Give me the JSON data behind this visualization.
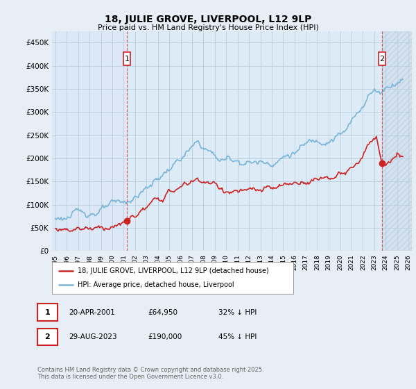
{
  "title": "18, JULIE GROVE, LIVERPOOL, L12 9LP",
  "subtitle": "Price paid vs. HM Land Registry's House Price Index (HPI)",
  "ylabel_values": [
    0,
    50000,
    100000,
    150000,
    200000,
    250000,
    300000,
    350000,
    400000,
    450000
  ],
  "ylabel_labels": [
    "£0",
    "£50K",
    "£100K",
    "£150K",
    "£200K",
    "£250K",
    "£300K",
    "£350K",
    "£400K",
    "£450K"
  ],
  "xlim_start": 1994.7,
  "xlim_end": 2026.3,
  "ylim": [
    0,
    475000
  ],
  "hpi_color": "#7ab4d8",
  "price_color": "#cc2222",
  "vline_color": "#dd4444",
  "marker1_year": 2001.3,
  "marker2_year": 2023.66,
  "marker1_price": 64950,
  "marker2_price": 190000,
  "legend_line1": "18, JULIE GROVE, LIVERPOOL, L12 9LP (detached house)",
  "legend_line2": "HPI: Average price, detached house, Liverpool",
  "note1_label": "1",
  "note1_date": "20-APR-2001",
  "note1_price": "£64,950",
  "note1_hpi": "32% ↓ HPI",
  "note2_label": "2",
  "note2_date": "29-AUG-2023",
  "note2_price": "£190,000",
  "note2_hpi": "45% ↓ HPI",
  "footer": "Contains HM Land Registry data © Crown copyright and database right 2025.\nThis data is licensed under the Open Government Licence v3.0.",
  "bg_color": "#e8eef5",
  "plot_bg_color": "#dce8f5",
  "grid_color": "#b8cfe0",
  "hatch_color": "#c0cfd8"
}
